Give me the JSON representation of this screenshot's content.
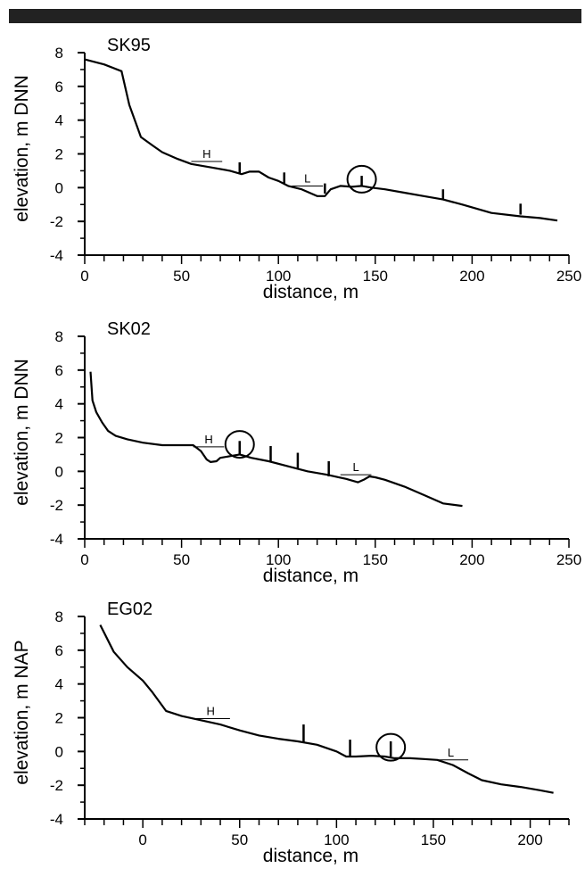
{
  "header_bar": {
    "color": "#222222"
  },
  "chart_data": [
    {
      "type": "line",
      "title": "SK95",
      "xlabel": "distance,  m",
      "ylabel": "elevation,  m DNN",
      "xlim": [
        0,
        250
      ],
      "ylim": [
        -4,
        8
      ],
      "xticks": [
        0,
        50,
        100,
        150,
        200,
        250
      ],
      "yticks": [
        -4,
        -2,
        0,
        2,
        4,
        6,
        8
      ],
      "xtick_labels": [
        "0",
        "50",
        "100",
        "150",
        "200",
        "250"
      ],
      "ytick_labels": [
        "-4",
        "-2",
        "0",
        "2",
        "4",
        "6",
        "8"
      ],
      "series": [
        {
          "x": [
            0,
            10,
            19,
            23,
            29,
            35,
            40,
            48,
            55,
            65,
            75,
            81,
            85,
            90,
            95,
            100,
            105,
            112,
            120,
            124,
            127,
            132,
            138,
            143,
            148,
            155,
            165,
            175,
            185,
            195,
            210,
            225,
            235,
            244
          ],
          "y": [
            7.6,
            7.3,
            6.9,
            4.9,
            3.0,
            2.5,
            2.1,
            1.7,
            1.4,
            1.2,
            1.0,
            0.8,
            0.95,
            0.95,
            0.6,
            0.4,
            0.1,
            -0.1,
            -0.5,
            -0.5,
            -0.1,
            0.1,
            0.05,
            0.1,
            0.0,
            -0.1,
            -0.3,
            -0.5,
            -0.7,
            -1.0,
            -1.5,
            -1.7,
            -1.8,
            -1.95
          ]
        }
      ],
      "markers": [
        {
          "x": 80,
          "y_base": 0.85,
          "height": 0.65
        },
        {
          "x": 103,
          "y_base": 0.25,
          "height": 0.65
        },
        {
          "x": 124,
          "y_base": -0.35,
          "height": 0.6
        },
        {
          "x": 143,
          "y_base": 0.1,
          "height": 0.6
        },
        {
          "x": 185,
          "y_base": -0.7,
          "height": 0.6
        },
        {
          "x": 225,
          "y_base": -1.6,
          "height": 0.65
        }
      ],
      "circle": {
        "x": 143,
        "y": 0.5
      },
      "annotations": [
        {
          "label": "H",
          "x1": 55,
          "x2": 71,
          "y": 1.55
        },
        {
          "label": "L",
          "x1": 107,
          "x2": 123,
          "y": 0.1
        }
      ]
    },
    {
      "type": "line",
      "title": "SK02",
      "xlabel": "distance,  m",
      "ylabel": "elevation,  m DNN",
      "xlim": [
        0,
        250
      ],
      "ylim": [
        -4,
        8
      ],
      "xticks": [
        0,
        50,
        100,
        150,
        200,
        250
      ],
      "yticks": [
        -4,
        -2,
        0,
        2,
        4,
        6,
        8
      ],
      "xtick_labels": [
        "0",
        "50",
        "100",
        "150",
        "200",
        "250"
      ],
      "ytick_labels": [
        "-4",
        "-2",
        "0",
        "2",
        "4",
        "6",
        "8"
      ],
      "series": [
        {
          "x": [
            3,
            4,
            6,
            9,
            12,
            16,
            22,
            30,
            40,
            50,
            56,
            60,
            63,
            65,
            68,
            70,
            75,
            80,
            86,
            95,
            105,
            115,
            125,
            135,
            141,
            144,
            147,
            150,
            155,
            165,
            175,
            185,
            195
          ],
          "y": [
            5.9,
            4.2,
            3.5,
            2.9,
            2.4,
            2.1,
            1.9,
            1.7,
            1.55,
            1.55,
            1.55,
            1.2,
            0.7,
            0.55,
            0.6,
            0.8,
            0.9,
            1.0,
            0.8,
            0.6,
            0.3,
            0.0,
            -0.2,
            -0.45,
            -0.65,
            -0.5,
            -0.3,
            -0.35,
            -0.5,
            -0.9,
            -1.4,
            -1.9,
            -2.05
          ]
        }
      ],
      "markers": [
        {
          "x": 80,
          "y_base": 1.0,
          "height": 0.8
        },
        {
          "x": 96,
          "y_base": 0.6,
          "height": 0.9
        },
        {
          "x": 110,
          "y_base": 0.2,
          "height": 0.9
        },
        {
          "x": 126,
          "y_base": -0.3,
          "height": 0.9
        }
      ],
      "circle": {
        "x": 80,
        "y": 1.6
      },
      "annotations": [
        {
          "label": "H",
          "x1": 56,
          "x2": 72,
          "y": 1.45
        },
        {
          "label": "L",
          "x1": 132,
          "x2": 148,
          "y": -0.2
        }
      ]
    },
    {
      "type": "line",
      "title": "EG02",
      "xlabel": "distance,  m",
      "ylabel": "elevation,  m NAP",
      "xlim": [
        -30,
        220
      ],
      "ylim": [
        -4,
        8
      ],
      "xticks": [
        0,
        50,
        100,
        150,
        200
      ],
      "yticks": [
        -4,
        -2,
        0,
        2,
        4,
        6,
        8
      ],
      "xtick_labels": [
        "0",
        "50",
        "100",
        "150",
        "200"
      ],
      "ytick_labels": [
        "-4",
        "-2",
        "0",
        "2",
        "4",
        "6",
        "8"
      ],
      "series": [
        {
          "x": [
            -22,
            -15,
            -8,
            0,
            5,
            12,
            20,
            30,
            40,
            50,
            60,
            70,
            80,
            90,
            100,
            105,
            110,
            118,
            125,
            130,
            138,
            145,
            152,
            160,
            168,
            175,
            185,
            195,
            205,
            212
          ],
          "y": [
            7.5,
            5.9,
            5.0,
            4.2,
            3.5,
            2.4,
            2.1,
            1.85,
            1.6,
            1.25,
            0.95,
            0.75,
            0.6,
            0.4,
            0.0,
            -0.3,
            -0.3,
            -0.25,
            -0.3,
            -0.4,
            -0.4,
            -0.45,
            -0.5,
            -0.8,
            -1.3,
            -1.7,
            -1.95,
            -2.1,
            -2.3,
            -2.45
          ]
        }
      ],
      "markers": [
        {
          "x": 83,
          "y_base": 0.5,
          "height": 1.1
        },
        {
          "x": 107,
          "y_base": -0.3,
          "height": 1.0
        },
        {
          "x": 128,
          "y_base": -0.3,
          "height": 0.9
        }
      ],
      "circle": {
        "x": 128,
        "y": 0.25
      },
      "annotations": [
        {
          "label": "H",
          "x1": 25,
          "x2": 45,
          "y": 1.95
        },
        {
          "label": "L",
          "x1": 150,
          "x2": 168,
          "y": -0.5
        }
      ]
    }
  ]
}
